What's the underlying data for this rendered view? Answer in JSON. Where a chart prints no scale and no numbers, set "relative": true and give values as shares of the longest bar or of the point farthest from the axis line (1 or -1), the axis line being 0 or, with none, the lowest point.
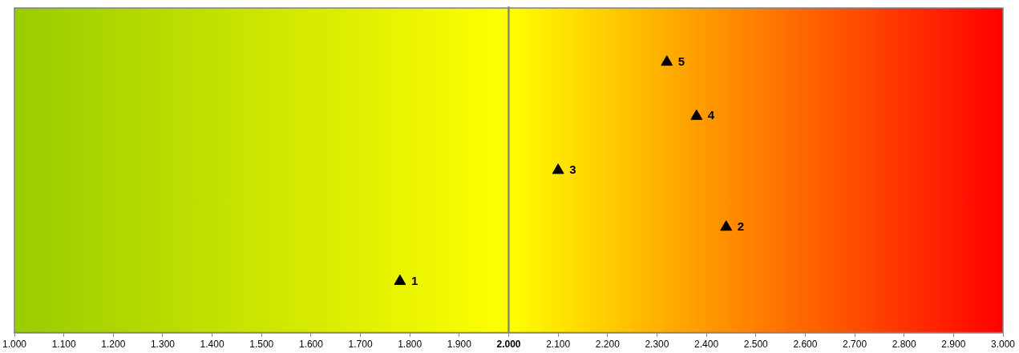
{
  "chart_data": {
    "type": "scatter",
    "relative": true,
    "marker": "triangle",
    "grid": false,
    "legend": false,
    "tick_labels": "x",
    "series": [
      {
        "color": "#000000",
        "x": [
          1.78,
          2.44,
          2.1,
          2.38,
          2.32
        ],
        "values": [
          0.19,
          0.39,
          0.6,
          0.8,
          1
        ]
      }
    ],
    "xlim": [
      1,
      3
    ],
    "xticks": [
      {
        "value": 1,
        "label": "1.000"
      },
      {
        "value": 1.1,
        "label": "1.100"
      },
      {
        "value": 1.2,
        "label": "1.200"
      },
      {
        "value": 1.3,
        "label": "1.300"
      },
      {
        "value": 1.4,
        "label": "1.400"
      },
      {
        "value": 1.5,
        "label": "1.500"
      },
      {
        "value": 1.6,
        "label": "1.600"
      },
      {
        "value": 1.7,
        "label": "1.700"
      },
      {
        "value": 1.8,
        "label": "1.800"
      },
      {
        "value": 1.9,
        "label": "1.900"
      },
      {
        "value": 2,
        "label": "2.000"
      },
      {
        "value": 2.1,
        "label": "2.100"
      },
      {
        "value": 2.2,
        "label": "2.200"
      },
      {
        "value": 2.3,
        "label": "2.300"
      },
      {
        "value": 2.4,
        "label": "2.400"
      },
      {
        "value": 2.5,
        "label": "2.500"
      },
      {
        "value": 2.6,
        "label": "2.600"
      },
      {
        "value": 2.7,
        "label": "2.700"
      },
      {
        "value": 2.8,
        "label": "2.800"
      },
      {
        "value": 2.9,
        "label": "2.900"
      },
      {
        "value": 3,
        "label": "3.000"
      }
    ],
    "bands": [
      {
        "axis": "x",
        "from": 1,
        "to": 2,
        "color": "#99cc00"
      },
      {
        "axis": "x",
        "from": 2,
        "to": 3,
        "color": "#ffff00"
      }
    ],
    "ref_lines": [
      {
        "axis": "x",
        "value": 2,
        "color": "#808080"
      }
    ],
    "annotations": [
      {
        "text": "1",
        "x": 1.78,
        "y": 0.19
      },
      {
        "text": "2",
        "x": 2.44,
        "y": 0.39
      },
      {
        "text": "3",
        "x": 2.1,
        "y": 0.6
      },
      {
        "text": "4",
        "x": 2.38,
        "y": 0.8
      },
      {
        "text": "5",
        "x": 2.32,
        "y": 1
      }
    ]
  }
}
